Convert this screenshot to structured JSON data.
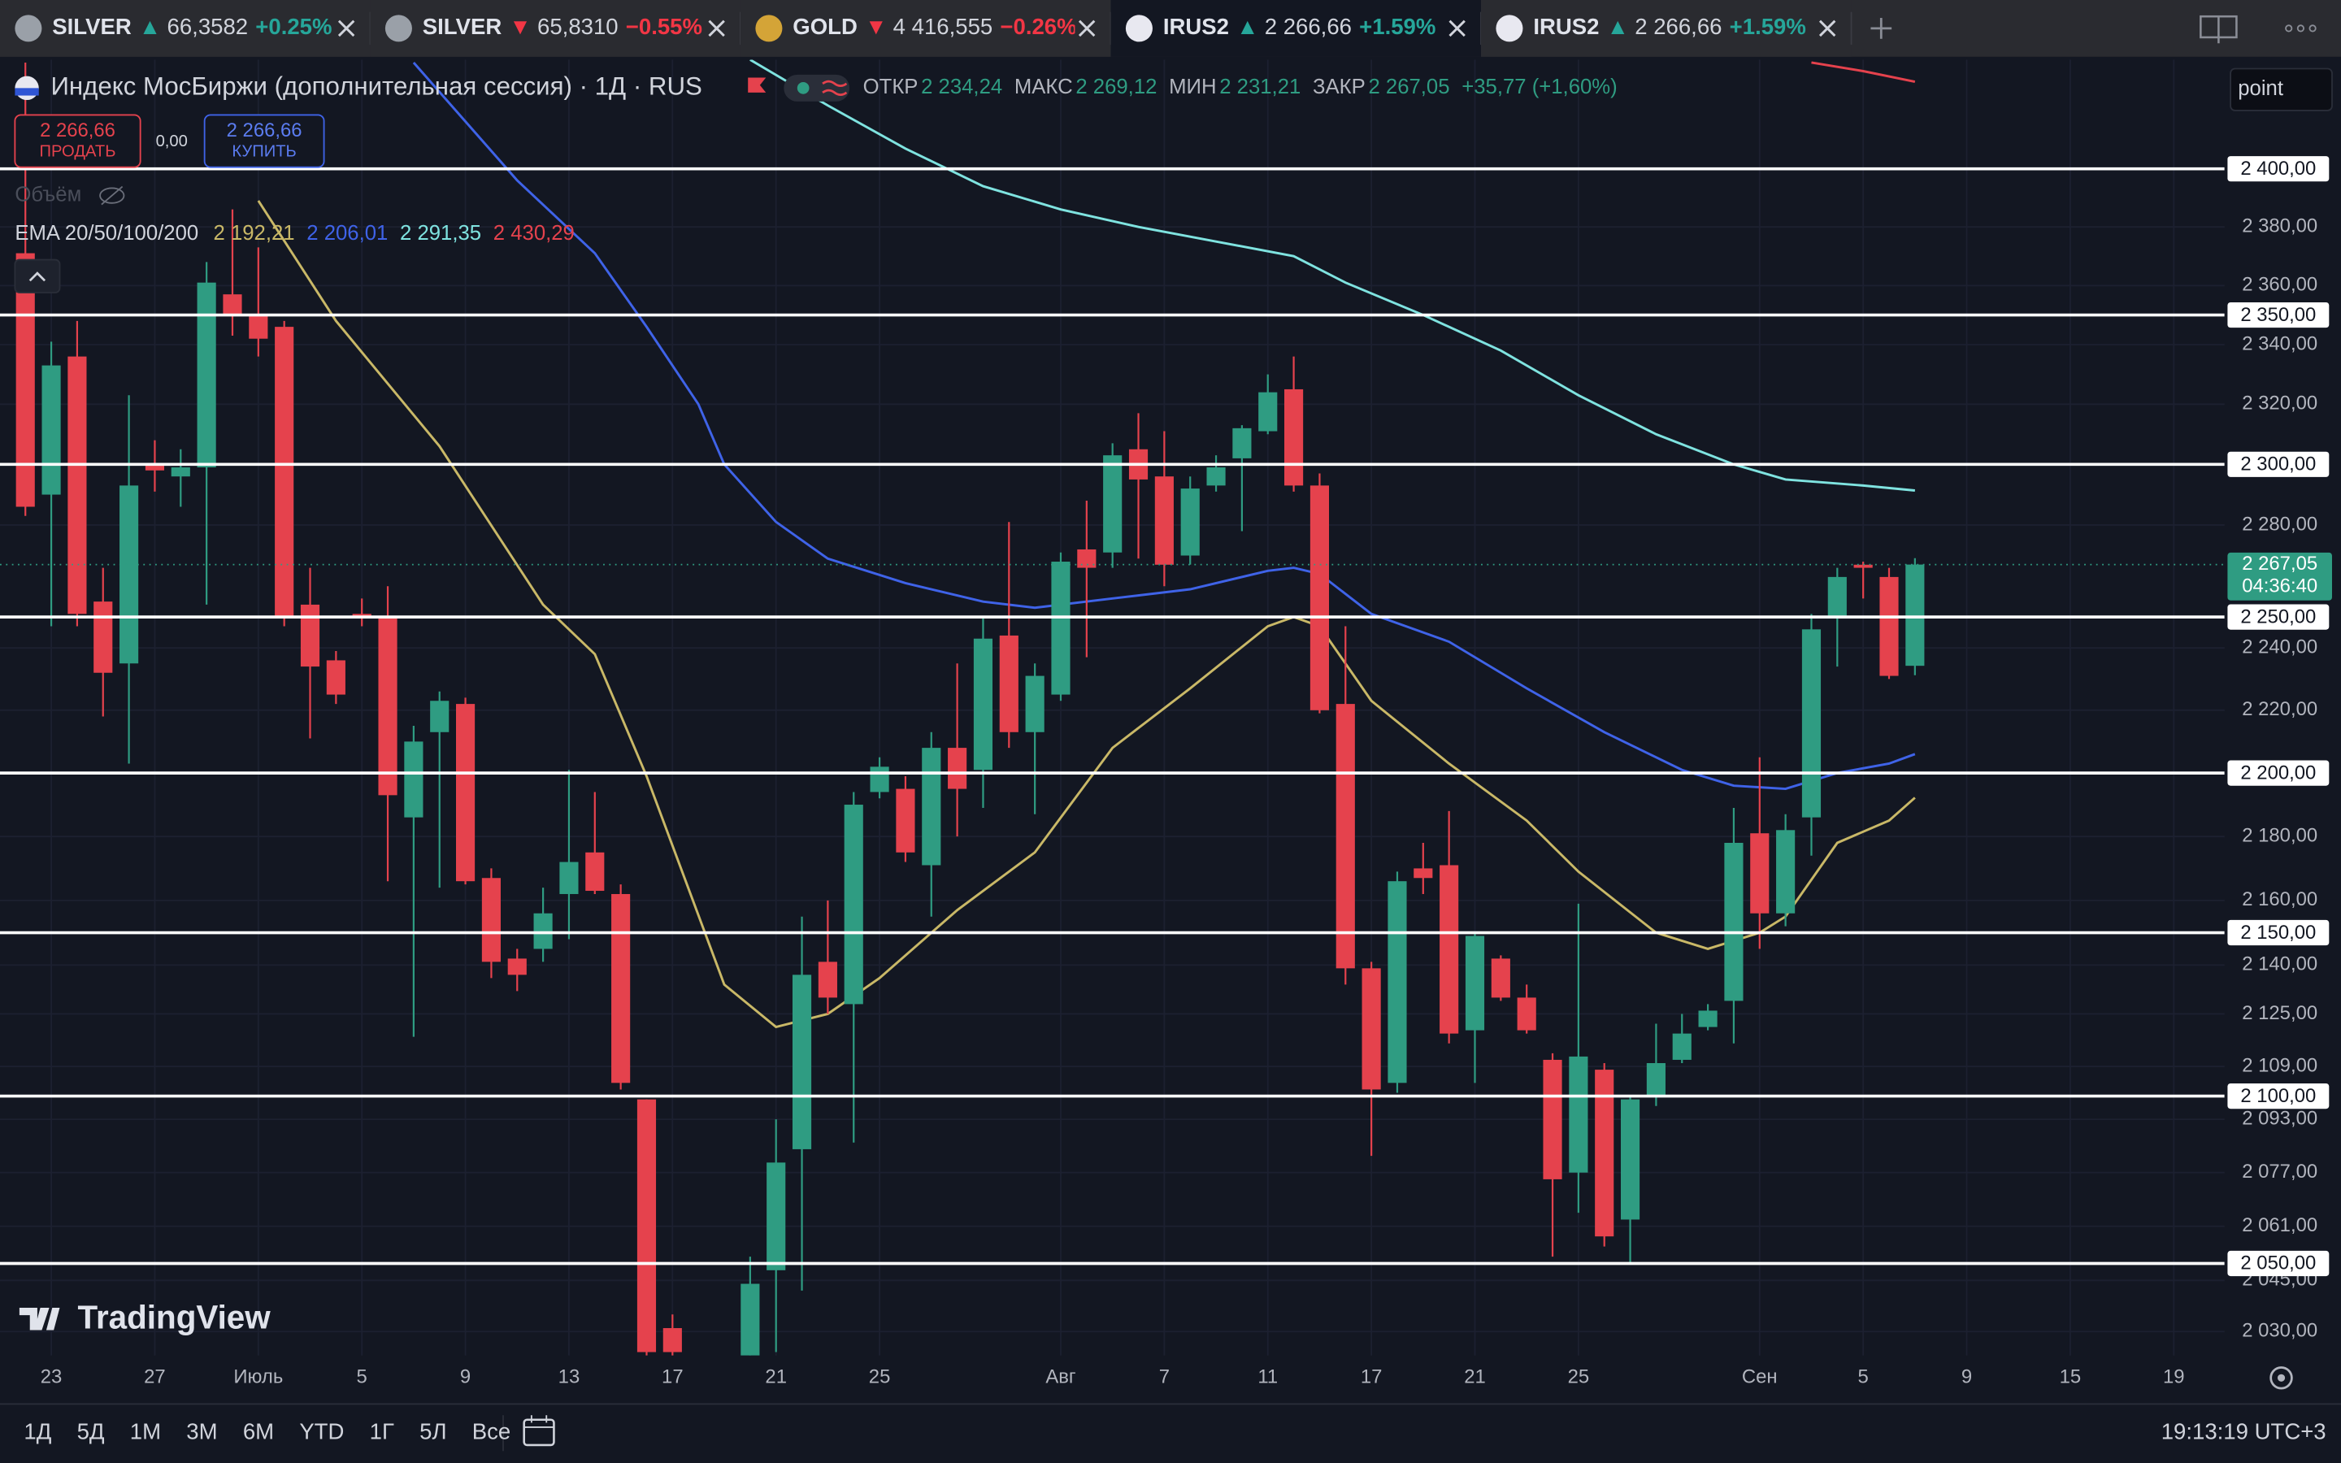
{
  "tabs": [
    {
      "symbol": "SILVER",
      "arrow": "▲",
      "price": "66,3582",
      "change": "+0.25%",
      "color": "#26a69a",
      "icon_color": "#9aa0a8"
    },
    {
      "symbol": "SILVER",
      "arrow": "▼",
      "price": "65,8310",
      "change": "−0.55%",
      "color": "#f23645",
      "icon_color": "#9aa0a8"
    },
    {
      "symbol": "GOLD",
      "arrow": "▼",
      "price": "4 416,555",
      "change": "−0.26%",
      "color": "#f23645",
      "icon_color": "#d4a437"
    },
    {
      "symbol": "IRUS2",
      "arrow": "▲",
      "price": "2 266,66",
      "change": "+1.59%",
      "color": "#26a69a",
      "icon_color": "#e8e8f0"
    },
    {
      "symbol": "IRUS2",
      "arrow": "▲",
      "price": "2 266,66",
      "change": "+1.59%",
      "color": "#26a69a",
      "icon_color": "#e8e8f0"
    }
  ],
  "header": {
    "title": "Индекс МосБиржи (дополнительная сессия) · 1Д · RUS",
    "open_label": "ОТКР",
    "open": "2 234,24",
    "high_label": "МАКС",
    "high": "2 269,12",
    "low_label": "МИН",
    "low": "2 231,21",
    "close_label": "ЗАКР",
    "close": "2 267,05",
    "change": "+35,77 (+1,60%)"
  },
  "trade": {
    "sell_price": "2 266,66",
    "sell": "ПРОДАТЬ",
    "spread": "0,00",
    "buy_price": "2 266,66",
    "buy": "КУПИТЬ"
  },
  "volume_label": "Объём",
  "point_input": "point",
  "watermark": "TradingView",
  "ranges": [
    "1Д",
    "5Д",
    "1М",
    "3М",
    "6М",
    "YTD",
    "1Г",
    "5Л",
    "Все"
  ],
  "clock": "19:13:19 UTC+3",
  "chart_data": {
    "type": "candlestick",
    "categories": [
      null,
      "23",
      null,
      null,
      null,
      "27",
      null,
      null,
      null,
      "Июль",
      null,
      null,
      null,
      "5",
      null,
      null,
      null,
      "9",
      null,
      null,
      null,
      "13",
      null,
      null,
      null,
      "17",
      null,
      null,
      null,
      "21",
      null,
      null,
      null,
      "25",
      null,
      null,
      null,
      null,
      null,
      null,
      "Авг",
      null,
      null,
      null,
      "7",
      null,
      null,
      null,
      "11",
      null,
      null,
      null,
      "17",
      null,
      null,
      null,
      "21",
      null,
      null,
      null,
      "25",
      null,
      null,
      null,
      null,
      null,
      null,
      "Сен",
      null,
      null,
      null,
      "5",
      null,
      null,
      null,
      "9",
      null,
      null,
      null,
      "15",
      null,
      null,
      null,
      "19"
    ],
    "open": [
      2371,
      2290,
      2336,
      2255,
      2235,
      2300,
      2296,
      2299,
      2357,
      2350,
      2346,
      2254,
      2236,
      2251,
      2250,
      2186,
      2213,
      2222,
      2167,
      2142,
      2145,
      2162,
      2175,
      2162,
      2099,
      2031,
      2015,
      2000,
      2023,
      2048,
      2084,
      2141,
      2128,
      2194,
      2195,
      2171,
      2208,
      2201,
      2244,
      2213,
      2225,
      2272,
      2271,
      2305,
      2296,
      2270,
      2293,
      2302,
      2311,
      2325,
      2293,
      2222,
      2139,
      2104,
      2170,
      2171,
      2120,
      2142,
      2130,
      2111,
      2077,
      2108,
      2063,
      2100,
      2111,
      2121,
      2129,
      2181,
      2156,
      2186,
      2250,
      2267,
      2263,
      2234.24,
      null,
      null,
      null,
      null,
      null,
      null,
      null,
      null,
      null,
      null
    ],
    "high": [
      2437,
      2341,
      2348,
      2266,
      2323,
      2308,
      2305,
      2368,
      2386,
      2373,
      2348,
      2266,
      2239,
      2256,
      2260,
      2215,
      2226,
      2224,
      2170,
      2145,
      2164,
      2201,
      2194,
      2165,
      2099,
      2035,
      2022,
      2021,
      2052,
      2093,
      2155,
      2160,
      2194,
      2205,
      2199,
      2213,
      2235,
      2250,
      2281,
      2235,
      2271,
      2288,
      2307,
      2317,
      2311,
      2296,
      2303,
      2313,
      2330,
      2336,
      2297,
      2247,
      2141,
      2169,
      2178,
      2188,
      2150,
      2143,
      2134,
      2113,
      2159,
      2110,
      2100,
      2122,
      2125,
      2128,
      2189,
      2205,
      2187,
      2251,
      2266,
      2268,
      2266,
      2269.12,
      null,
      null,
      null,
      null,
      null,
      null,
      null,
      null,
      null,
      null
    ],
    "low": [
      2283,
      2247,
      2247,
      2218,
      2203,
      2291,
      2286,
      2254,
      2343,
      2336,
      2247,
      2211,
      2222,
      2247,
      2166,
      2118,
      2164,
      2165,
      2136,
      2132,
      2141,
      2148,
      2162,
      2102,
      2023,
      2023,
      1995,
      1990,
      2023,
      2024,
      2042,
      2125,
      2086,
      2192,
      2172,
      2155,
      2180,
      2189,
      2208,
      2187,
      2223,
      2237,
      2266,
      2269,
      2260,
      2267,
      2291,
      2278,
      2310,
      2291,
      2219,
      2134,
      2082,
      2101,
      2162,
      2116,
      2104,
      2129,
      2119,
      2052,
      2065,
      2055,
      2050,
      2097,
      2110,
      2120,
      2116,
      2145,
      2152,
      2174,
      2234,
      2256,
      2230,
      2231.21,
      null,
      null,
      null,
      null,
      null,
      null,
      null,
      null,
      null,
      null
    ],
    "close": [
      2286,
      2333,
      2251,
      2232,
      2293,
      2298,
      2299,
      2361,
      2350,
      2342,
      2250,
      2234,
      2225,
      2250,
      2193,
      2210,
      2223,
      2166,
      2141,
      2137,
      2156,
      2172,
      2163,
      2104,
      2024,
      2024,
      2005,
      2018,
      2044,
      2080,
      2137,
      2130,
      2190,
      2202,
      2175,
      2208,
      2195,
      2243,
      2213,
      2231,
      2268,
      2266,
      2303,
      2295,
      2267,
      2292,
      2299,
      2312,
      2324,
      2293,
      2220,
      2139,
      2102,
      2166,
      2167,
      2119,
      2149,
      2130,
      2120,
      2075,
      2112,
      2058,
      2099,
      2110,
      2119,
      2126,
      2178,
      2156,
      2182,
      2246,
      2263,
      2266,
      2231,
      2267.05,
      null,
      null,
      null,
      null,
      null,
      null,
      null,
      null,
      null,
      null
    ],
    "up_color": "#2f9c82",
    "down_color": "#e5424d",
    "ylim": [
      2023,
      2438
    ],
    "yscale": "log",
    "grid": true,
    "yticks": [
      {
        "value": 2380,
        "label": "2 380,00"
      },
      {
        "value": 2360,
        "label": "2 360,00"
      },
      {
        "value": 2340,
        "label": "2 340,00"
      },
      {
        "value": 2320,
        "label": "2 320,00"
      },
      {
        "value": 2280,
        "label": "2 280,00"
      },
      {
        "value": 2240,
        "label": "2 240,00"
      },
      {
        "value": 2220,
        "label": "2 220,00"
      },
      {
        "value": 2180,
        "label": "2 180,00"
      },
      {
        "value": 2160,
        "label": "2 160,00"
      },
      {
        "value": 2140,
        "label": "2 140,00"
      },
      {
        "value": 2125,
        "label": "2 125,00"
      },
      {
        "value": 2109,
        "label": "2 109,00"
      },
      {
        "value": 2093,
        "label": "2 093,00"
      },
      {
        "value": 2077,
        "label": "2 077,00"
      },
      {
        "value": 2061,
        "label": "2 061,00"
      },
      {
        "value": 2045,
        "label": "2 045,00"
      },
      {
        "value": 2030,
        "label": "2 030,00"
      }
    ],
    "hlines": [
      {
        "value": 2400,
        "label": "2 400,00"
      },
      {
        "value": 2350,
        "label": "2 350,00"
      },
      {
        "value": 2300,
        "label": "2 300,00"
      },
      {
        "value": 2250,
        "label": "2 250,00"
      },
      {
        "value": 2200,
        "label": "2 200,00"
      },
      {
        "value": 2150,
        "label": "2 150,00"
      },
      {
        "value": 2100,
        "label": "2 100,00"
      },
      {
        "value": 2050,
        "label": "2 050,00"
      }
    ],
    "last_price": {
      "value": 2267.05,
      "label": "2 267,05",
      "countdown": "04:36:40"
    },
    "legend": "EMA 20/50/100/200",
    "series": [
      {
        "color": "#c9b867",
        "value_label": "2 192,21",
        "x": [
          9,
          12,
          16,
          20,
          22,
          24,
          27,
          29,
          31,
          33,
          36,
          39,
          42,
          45,
          48,
          49,
          50,
          52,
          55,
          58,
          60,
          63,
          65,
          67,
          68,
          70,
          72,
          73
        ],
        "values": [
          2389,
          2348,
          2306,
          2254,
          2238,
          2199,
          2134,
          2121,
          2125,
          2136,
          2157,
          2175,
          2208,
          2227,
          2247,
          2250,
          2247,
          2223,
          2203,
          2185,
          2169,
          2150,
          2145,
          2150,
          2155,
          2178,
          2185,
          2192.21
        ]
      },
      {
        "color": "#3f63e8",
        "value_label": "2 206,01",
        "x": [
          15,
          19,
          22,
          24,
          26,
          27,
          29,
          31,
          34,
          37,
          39,
          42,
          45,
          48,
          49,
          50,
          52,
          55,
          58,
          61,
          64,
          66,
          68,
          70,
          72,
          73
        ],
        "values": [
          2437,
          2396,
          2371,
          2346,
          2320,
          2300,
          2281,
          2269,
          2261,
          2255,
          2253,
          2256,
          2259,
          2265,
          2266,
          2264,
          2251,
          2242,
          2227,
          2213,
          2201,
          2196,
          2195,
          2200,
          2203,
          2206.01
        ]
      },
      {
        "color": "#7fe3e0",
        "value_label": "2 291,35",
        "x": [
          28,
          31,
          34,
          37,
          40,
          43,
          46,
          49,
          51,
          54,
          57,
          60,
          63,
          66,
          68,
          71,
          73
        ],
        "values": [
          2438,
          2422,
          2407,
          2394,
          2386,
          2380,
          2375,
          2370,
          2361,
          2350,
          2338,
          2323,
          2310,
          2300,
          2295,
          2293,
          2291.35
        ]
      },
      {
        "color": "#e5424d",
        "value_label": "2 430,29",
        "x": [
          69,
          71,
          73
        ],
        "values": [
          2437,
          2434,
          2430.29
        ]
      }
    ]
  }
}
